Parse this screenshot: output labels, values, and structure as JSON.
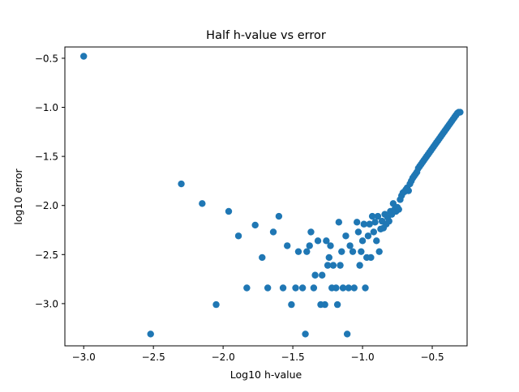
{
  "chart_data": {
    "type": "scatter",
    "title": "Half h-value vs error",
    "xlabel": "Log10 h-value",
    "ylabel": "log10 error",
    "xlim": [
      -3.135,
      -0.25
    ],
    "ylim": [
      -3.43,
      -0.385
    ],
    "xticks": [
      -3.0,
      -2.5,
      -2.0,
      -1.5,
      -1.0,
      -0.5
    ],
    "xtick_labels": [
      "−3.0",
      "−2.5",
      "−2.0",
      "−1.5",
      "−1.0",
      "−0.5"
    ],
    "yticks": [
      -0.5,
      -1.0,
      -1.5,
      -2.0,
      -2.5,
      -3.0
    ],
    "ytick_labels": [
      "−0.5",
      "−1.0",
      "−1.5",
      "−2.0",
      "−2.5",
      "−3.0"
    ],
    "grid": false,
    "legend": "none",
    "marker_color": "#1f77b4",
    "points": [
      [
        -3.0,
        -0.48
      ],
      [
        -2.52,
        -3.31
      ],
      [
        -2.3,
        -1.78
      ],
      [
        -2.15,
        -1.98
      ],
      [
        -2.05,
        -3.01
      ],
      [
        -1.96,
        -2.06
      ],
      [
        -1.89,
        -2.31
      ],
      [
        -1.83,
        -2.84
      ],
      [
        -1.77,
        -2.2
      ],
      [
        -1.72,
        -2.53
      ],
      [
        -1.68,
        -2.84
      ],
      [
        -1.64,
        -2.27
      ],
      [
        -1.6,
        -2.11
      ],
      [
        -1.57,
        -2.84
      ],
      [
        -1.54,
        -2.41
      ],
      [
        -1.51,
        -3.01
      ],
      [
        -1.48,
        -2.84
      ],
      [
        -1.46,
        -2.47
      ],
      [
        -1.43,
        -2.84
      ],
      [
        -1.4,
        -2.47
      ],
      [
        -1.41,
        -3.31
      ],
      [
        -1.38,
        -2.41
      ],
      [
        -1.37,
        -2.27
      ],
      [
        -1.35,
        -2.84
      ],
      [
        -1.34,
        -2.71
      ],
      [
        -1.32,
        -2.36
      ],
      [
        -1.3,
        -3.01
      ],
      [
        -1.29,
        -2.71
      ],
      [
        -1.27,
        -3.01
      ],
      [
        -1.26,
        -2.36
      ],
      [
        -1.25,
        -2.61
      ],
      [
        -1.24,
        -2.53
      ],
      [
        -1.23,
        -2.41
      ],
      [
        -1.22,
        -2.84
      ],
      [
        -1.21,
        -2.61
      ],
      [
        -1.19,
        -2.84
      ],
      [
        -1.18,
        -3.01
      ],
      [
        -1.17,
        -2.17
      ],
      [
        -1.16,
        -2.61
      ],
      [
        -1.15,
        -2.47
      ],
      [
        -1.14,
        -2.84
      ],
      [
        -1.12,
        -2.31
      ],
      [
        -1.11,
        -3.31
      ],
      [
        -1.1,
        -2.84
      ],
      [
        -1.09,
        -2.41
      ],
      [
        -1.07,
        -2.47
      ],
      [
        -1.06,
        -2.84
      ],
      [
        -1.04,
        -2.17
      ],
      [
        -1.03,
        -2.27
      ],
      [
        -1.02,
        -2.61
      ],
      [
        -1.01,
        -2.47
      ],
      [
        -1.0,
        -2.36
      ],
      [
        -0.99,
        -2.19
      ],
      [
        -0.98,
        -2.84
      ],
      [
        -0.97,
        -2.53
      ],
      [
        -0.96,
        -2.31
      ],
      [
        -0.95,
        -2.19
      ],
      [
        -0.94,
        -2.53
      ],
      [
        -0.93,
        -2.11
      ],
      [
        -0.92,
        -2.27
      ],
      [
        -0.91,
        -2.17
      ],
      [
        -0.9,
        -2.36
      ],
      [
        -0.89,
        -2.11
      ],
      [
        -0.88,
        -2.47
      ],
      [
        -0.87,
        -2.24
      ],
      [
        -0.86,
        -2.16
      ],
      [
        -0.85,
        -2.23
      ],
      [
        -0.84,
        -2.09
      ],
      [
        -0.83,
        -2.19
      ],
      [
        -0.82,
        -2.12
      ],
      [
        -0.81,
        -2.16
      ],
      [
        -0.8,
        -2.06
      ],
      [
        -0.79,
        -2.09
      ],
      [
        -0.78,
        -1.98
      ],
      [
        -0.77,
        -2.04
      ],
      [
        -0.76,
        -2.06
      ],
      [
        -0.75,
        -2.02
      ],
      [
        -0.74,
        -2.04
      ],
      [
        -0.73,
        -1.94
      ],
      [
        -0.72,
        -1.9
      ],
      [
        -0.71,
        -1.87
      ],
      [
        -0.7,
        -1.86
      ],
      [
        -0.69,
        -1.84
      ],
      [
        -0.68,
        -1.82
      ],
      [
        -0.67,
        -1.85
      ],
      [
        -0.66,
        -1.78
      ],
      [
        -0.65,
        -1.75
      ],
      [
        -0.64,
        -1.72
      ],
      [
        -0.63,
        -1.7
      ],
      [
        -0.62,
        -1.68
      ],
      [
        -0.61,
        -1.66
      ],
      [
        -0.6,
        -1.62
      ],
      [
        -0.59,
        -1.6
      ],
      [
        -0.58,
        -1.58
      ],
      [
        -0.57,
        -1.56
      ],
      [
        -0.56,
        -1.54
      ],
      [
        -0.55,
        -1.52
      ],
      [
        -0.54,
        -1.5
      ],
      [
        -0.53,
        -1.48
      ],
      [
        -0.52,
        -1.46
      ],
      [
        -0.51,
        -1.44
      ],
      [
        -0.5,
        -1.42
      ],
      [
        -0.49,
        -1.4
      ],
      [
        -0.48,
        -1.38
      ],
      [
        -0.47,
        -1.36
      ],
      [
        -0.46,
        -1.34
      ],
      [
        -0.45,
        -1.32
      ],
      [
        -0.44,
        -1.3
      ],
      [
        -0.43,
        -1.28
      ],
      [
        -0.42,
        -1.26
      ],
      [
        -0.41,
        -1.24
      ],
      [
        -0.4,
        -1.22
      ],
      [
        -0.39,
        -1.2
      ],
      [
        -0.38,
        -1.18
      ],
      [
        -0.37,
        -1.16
      ],
      [
        -0.36,
        -1.14
      ],
      [
        -0.35,
        -1.12
      ],
      [
        -0.34,
        -1.1
      ],
      [
        -0.33,
        -1.08
      ],
      [
        -0.32,
        -1.06
      ],
      [
        -0.31,
        -1.05
      ],
      [
        -0.3,
        -1.05
      ]
    ]
  }
}
